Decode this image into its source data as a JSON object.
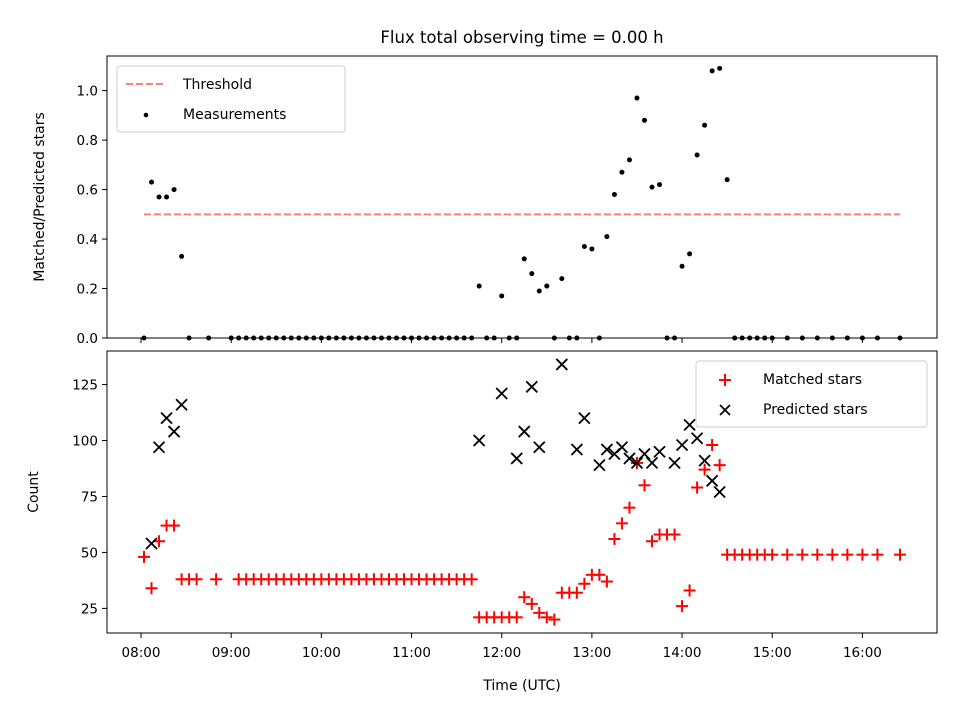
{
  "chart_data": {
    "title": "Flux total observing time = 0.00 h",
    "xlabel": "Time (UTC)",
    "x_ticks": [
      "08:00",
      "09:00",
      "10:00",
      "11:00",
      "12:00",
      "13:00",
      "14:00",
      "15:00",
      "16:00"
    ],
    "panels": [
      {
        "type": "scatter",
        "ylabel": "Matched/Predicted stars",
        "ylim": [
          0,
          1.14
        ],
        "y_ticks": [
          "0.0",
          "0.2",
          "0.4",
          "0.6",
          "0.8",
          "1.0"
        ],
        "legend": {
          "position": "upper-left"
        },
        "threshold": {
          "name": "Threshold",
          "value": 0.5,
          "x_start": "08:02",
          "x_end": "16:25",
          "color": "#ff7f7f"
        },
        "series": [
          {
            "name": "Measurements",
            "color": "#000000",
            "x": [
              "08:02",
              "08:07",
              "08:12",
              "08:17",
              "08:22",
              "08:27",
              "08:32",
              "08:45",
              "09:00",
              "09:05",
              "09:10",
              "09:15",
              "09:20",
              "09:25",
              "09:30",
              "09:35",
              "09:40",
              "09:45",
              "09:50",
              "09:55",
              "10:00",
              "10:05",
              "10:10",
              "10:15",
              "10:20",
              "10:25",
              "10:30",
              "10:35",
              "10:40",
              "10:45",
              "10:50",
              "10:55",
              "11:00",
              "11:05",
              "11:10",
              "11:15",
              "11:20",
              "11:25",
              "11:30",
              "11:35",
              "11:40",
              "11:45",
              "11:50",
              "11:55",
              "12:00",
              "12:05",
              "12:10",
              "12:15",
              "12:20",
              "12:25",
              "12:30",
              "12:35",
              "12:40",
              "12:45",
              "12:50",
              "12:55",
              "13:00",
              "13:05",
              "13:10",
              "13:15",
              "13:20",
              "13:25",
              "13:30",
              "13:35",
              "13:40",
              "13:45",
              "13:50",
              "13:55",
              "14:00",
              "14:05",
              "14:10",
              "14:15",
              "14:20",
              "14:25",
              "14:30",
              "14:35",
              "14:40",
              "14:45",
              "14:50",
              "14:55",
              "15:00",
              "15:10",
              "15:20",
              "15:30",
              "15:40",
              "15:50",
              "16:00",
              "16:10",
              "16:25"
            ],
            "y": [
              0,
              0.63,
              0.57,
              0.57,
              0.6,
              0.33,
              0,
              0,
              0,
              0,
              0,
              0,
              0,
              0,
              0,
              0,
              0,
              0,
              0,
              0,
              0,
              0,
              0,
              0,
              0,
              0,
              0,
              0,
              0,
              0,
              0,
              0,
              0,
              0,
              0,
              0,
              0,
              0,
              0,
              0,
              0,
              0.21,
              0,
              0,
              0.17,
              0,
              0,
              0.32,
              0.26,
              0.19,
              0.21,
              0,
              0.24,
              0,
              0,
              0.37,
              0.36,
              0,
              0.41,
              0.58,
              0.67,
              0.72,
              0.97,
              0.88,
              0.61,
              0.62,
              0,
              0,
              0.29,
              0.34,
              0.74,
              0.86,
              1.08,
              1.09,
              0.64,
              0,
              0,
              0,
              0,
              0,
              0,
              0,
              0,
              0,
              0,
              0,
              0,
              0,
              0
            ]
          }
        ]
      },
      {
        "type": "scatter",
        "ylabel": "Count",
        "ylim": [
          14,
          140
        ],
        "y_ticks": [
          "25",
          "50",
          "75",
          "100",
          "125"
        ],
        "legend": {
          "position": "upper-right"
        },
        "series": [
          {
            "name": "Matched stars",
            "marker": "+",
            "color": "#ff0000",
            "x": [
              "08:02",
              "08:07",
              "08:12",
              "08:17",
              "08:22",
              "08:27",
              "08:32",
              "08:37",
              "08:50",
              "09:05",
              "09:10",
              "09:15",
              "09:20",
              "09:25",
              "09:30",
              "09:35",
              "09:40",
              "09:45",
              "09:50",
              "09:55",
              "10:00",
              "10:05",
              "10:10",
              "10:15",
              "10:20",
              "10:25",
              "10:30",
              "10:35",
              "10:40",
              "10:45",
              "10:50",
              "10:55",
              "11:00",
              "11:05",
              "11:10",
              "11:15",
              "11:20",
              "11:25",
              "11:30",
              "11:35",
              "11:40",
              "11:45",
              "11:50",
              "11:55",
              "12:00",
              "12:05",
              "12:10",
              "12:15",
              "12:20",
              "12:25",
              "12:30",
              "12:35",
              "12:40",
              "12:45",
              "12:50",
              "12:55",
              "13:00",
              "13:05",
              "13:10",
              "13:15",
              "13:20",
              "13:25",
              "13:30",
              "13:35",
              "13:40",
              "13:45",
              "13:50",
              "13:55",
              "14:00",
              "14:05",
              "14:10",
              "14:15",
              "14:20",
              "14:25",
              "14:30",
              "14:35",
              "14:40",
              "14:45",
              "14:50",
              "14:55",
              "15:00",
              "15:10",
              "15:20",
              "15:30",
              "15:40",
              "15:50",
              "16:00",
              "16:10",
              "16:25"
            ],
            "y": [
              48,
              34,
              55,
              62,
              62,
              38,
              38,
              38,
              38,
              38,
              38,
              38,
              38,
              38,
              38,
              38,
              38,
              38,
              38,
              38,
              38,
              38,
              38,
              38,
              38,
              38,
              38,
              38,
              38,
              38,
              38,
              38,
              38,
              38,
              38,
              38,
              38,
              38,
              38,
              38,
              38,
              21,
              21,
              21,
              21,
              21,
              21,
              30,
              27,
              23,
              21,
              20,
              32,
              32,
              32,
              36,
              40,
              40,
              37,
              56,
              63,
              70,
              90,
              80,
              55,
              58,
              58,
              58,
              26,
              33,
              79,
              87,
              98,
              89,
              49,
              49,
              49,
              49,
              49,
              49,
              49,
              49,
              49,
              49,
              49,
              49,
              49,
              49,
              49
            ]
          },
          {
            "name": "Predicted stars",
            "marker": "x",
            "color": "#000000",
            "x": [
              "08:07",
              "08:12",
              "08:17",
              "08:22",
              "08:27",
              "11:45",
              "12:00",
              "12:10",
              "12:15",
              "12:20",
              "12:25",
              "12:40",
              "12:50",
              "12:55",
              "13:05",
              "13:10",
              "13:15",
              "13:20",
              "13:25",
              "13:30",
              "13:35",
              "13:40",
              "13:45",
              "13:55",
              "14:00",
              "14:05",
              "14:10",
              "14:15",
              "14:20",
              "14:25"
            ],
            "y": [
              54,
              97,
              110,
              104,
              116,
              100,
              121,
              92,
              104,
              124,
              97,
              134,
              96,
              110,
              89,
              96,
              94,
              97,
              92,
              90,
              94,
              90,
              95,
              90,
              98,
              107,
              101,
              91,
              82,
              77
            ]
          }
        ]
      }
    ]
  }
}
